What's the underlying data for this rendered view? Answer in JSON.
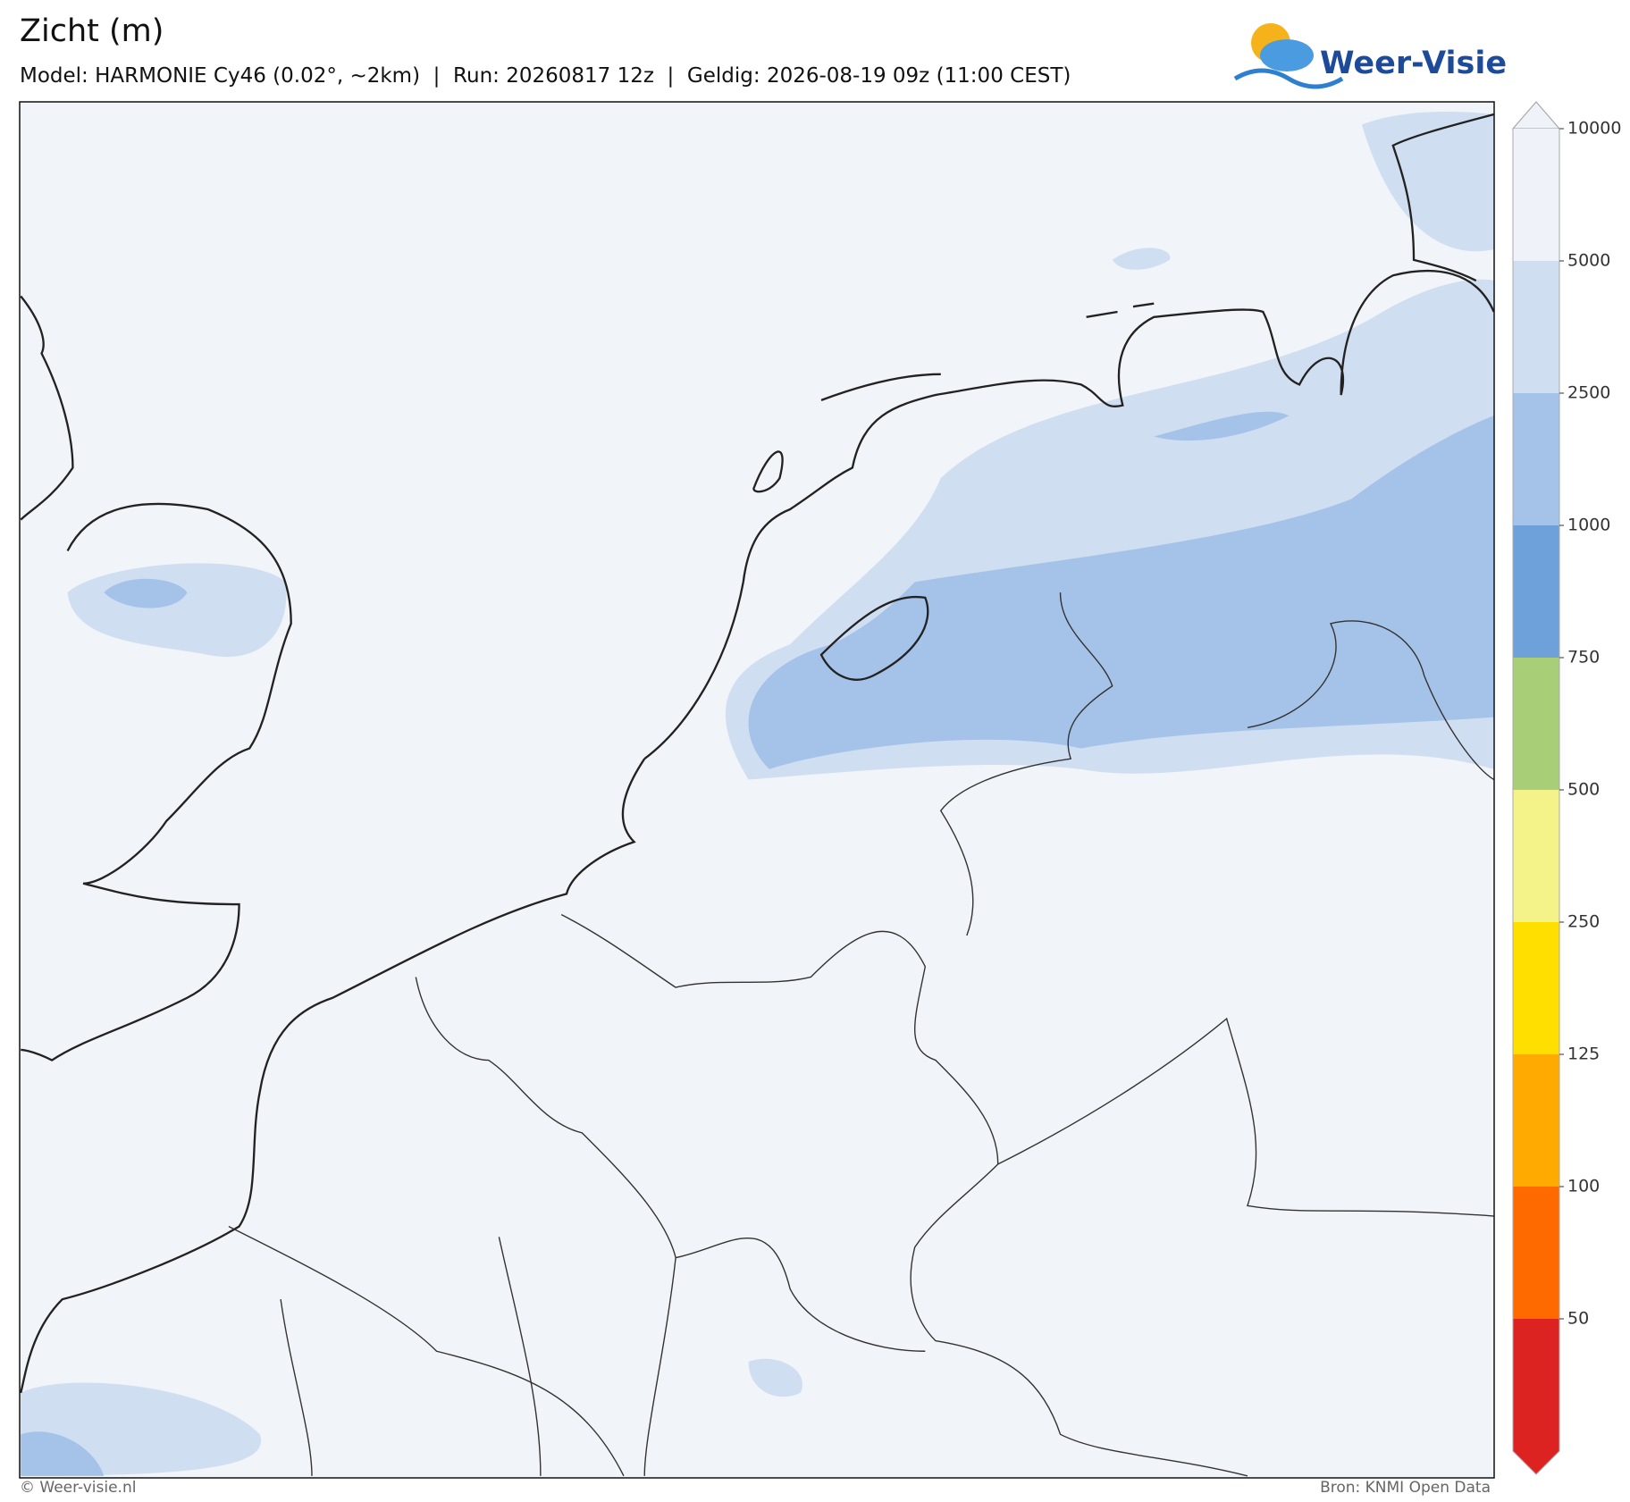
{
  "header": {
    "title": "Zicht (m)",
    "subtitle": "Model: HARMONIE Cy46 (0.02°, ~2km)  |  Run: 20260817 12z  |  Geldig: 2026-08-19 09z (11:00 CEST)",
    "logo": "Weer-Visie"
  },
  "colorbar": {
    "ticks": [
      10000,
      5000,
      2500,
      1000,
      750,
      500,
      250,
      125,
      100,
      50
    ],
    "colors": [
      "#eff3f9",
      "#cfdff1",
      "#a5c3e9",
      "#6ea0d9",
      "#a8cf78",
      "#f3f38a",
      "#ffdf00",
      "#ffaa00",
      "#ff6a00",
      "#dd2222"
    ]
  },
  "footer": {
    "left": "© Weer-visie.nl",
    "right": "Bron: KNMI Open Data"
  }
}
